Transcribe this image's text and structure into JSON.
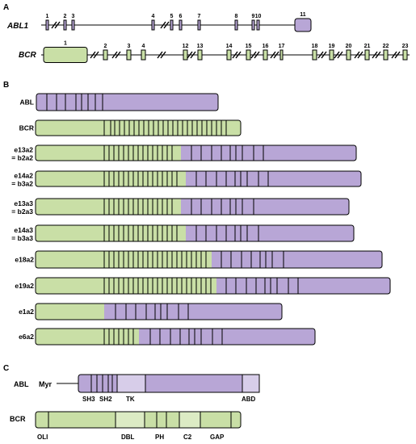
{
  "colors": {
    "green": "#c9dfa6",
    "purple": "#b8a6d6",
    "purple_light": "#d7cde9",
    "green_light": "#dcebc4",
    "stroke": "#000000"
  },
  "panel_a": {
    "panel_label": "A",
    "abl1": {
      "gene_label": "ABL1",
      "exon_numbers": [
        "1",
        "2",
        "3",
        "4",
        "5",
        "6",
        "7",
        "8",
        "9",
        "10",
        "11"
      ]
    },
    "bcr": {
      "gene_label": "BCR",
      "exon_numbers": [
        "1",
        "2",
        "3",
        "4",
        "12",
        "13",
        "14",
        "15",
        "16",
        "17",
        "18",
        "19",
        "20",
        "21",
        "22",
        "23"
      ]
    }
  },
  "panel_b": {
    "panel_label": "B",
    "rows": [
      {
        "label": [
          "ABL"
        ]
      },
      {
        "label": [
          "BCR"
        ]
      },
      {
        "label": [
          "e13a2",
          "= b2a2"
        ]
      },
      {
        "label": [
          "e14a2",
          "= b3a2"
        ]
      },
      {
        "label": [
          "e13a3",
          "= b2a3"
        ]
      },
      {
        "label": [
          "e14a3",
          "= b3a3"
        ]
      },
      {
        "label": [
          "e18a2"
        ]
      },
      {
        "label": [
          "e19a2"
        ]
      },
      {
        "label": [
          "e1a2"
        ]
      },
      {
        "label": [
          "e6a2"
        ]
      }
    ]
  },
  "panel_c": {
    "panel_label": "C",
    "abl": {
      "protein_label": "ABL",
      "myr_label": "Myr",
      "domains": [
        "SH3",
        "SH2",
        "TK",
        "ABD"
      ]
    },
    "bcr": {
      "protein_label": "BCR",
      "domains": [
        "OLI",
        "DBL",
        "PH",
        "C2",
        "GAP"
      ]
    }
  }
}
